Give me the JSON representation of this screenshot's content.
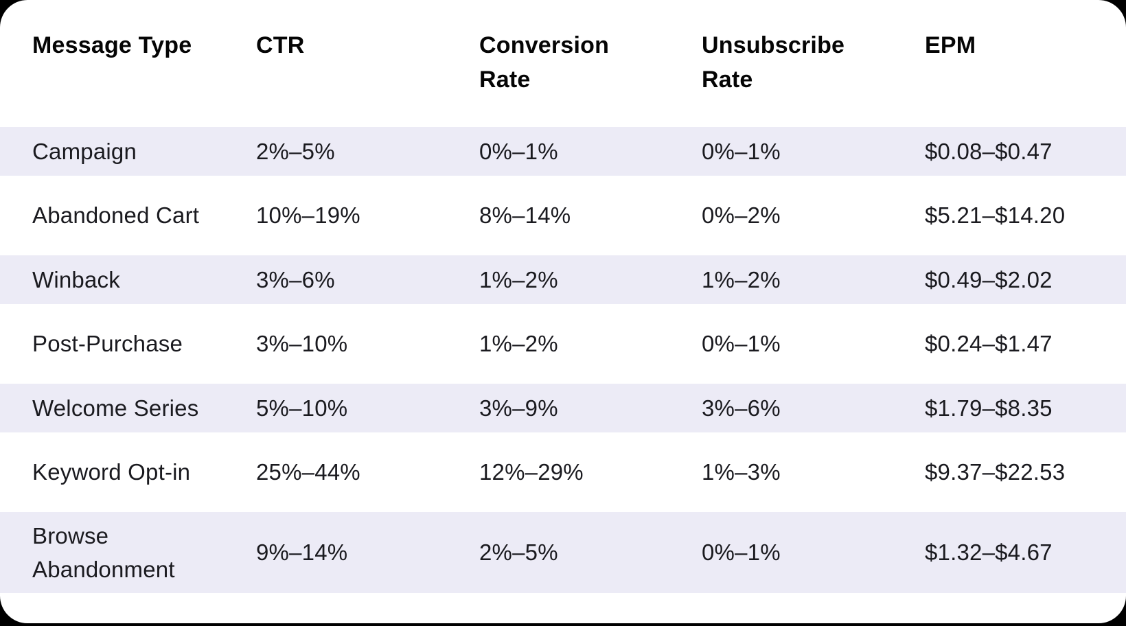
{
  "page": {
    "background_color": "#000000",
    "card_color": "#ffffff",
    "stripe_color": "#ECEBF6",
    "header_text_color": "#050505",
    "body_text_color": "#1a1a1f"
  },
  "chart_data": {
    "type": "table",
    "title": "",
    "columns": [
      {
        "id": "message-type",
        "label": "Message Type"
      },
      {
        "id": "ctr",
        "label": "CTR"
      },
      {
        "id": "conversion-rate",
        "label": "Conversion\nRate"
      },
      {
        "id": "unsubscribe-rate",
        "label": "Unsubscribe\nRate"
      },
      {
        "id": "epm",
        "label": "EPM"
      }
    ],
    "rows": [
      [
        "Campaign",
        "2%–5%",
        "0%–1%",
        "0%–1%",
        "$0.08–$0.47"
      ],
      [
        "Abandoned Cart",
        "10%–19%",
        "8%–14%",
        "0%–2%",
        "$5.21–$14.20"
      ],
      [
        "Winback",
        "3%–6%",
        "1%–2%",
        "1%–2%",
        "$0.49–$2.02"
      ],
      [
        "Post-Purchase",
        "3%–10%",
        "1%–2%",
        "0%–1%",
        "$0.24–$1.47"
      ],
      [
        "Welcome Series",
        "5%–10%",
        "3%–9%",
        "3%–6%",
        "$1.79–$8.35"
      ],
      [
        "Keyword Opt-in",
        "25%–44%",
        "12%–29%",
        "1%–3%",
        "$9.37–$22.53"
      ],
      [
        "Browse\nAbandonment",
        "9%–14%",
        "2%–5%",
        "0%–1%",
        "$1.32–$4.67"
      ]
    ],
    "layout": {
      "striped_row_indices": [
        0,
        2,
        4,
        6
      ],
      "legend": "none",
      "grid": "off"
    }
  }
}
